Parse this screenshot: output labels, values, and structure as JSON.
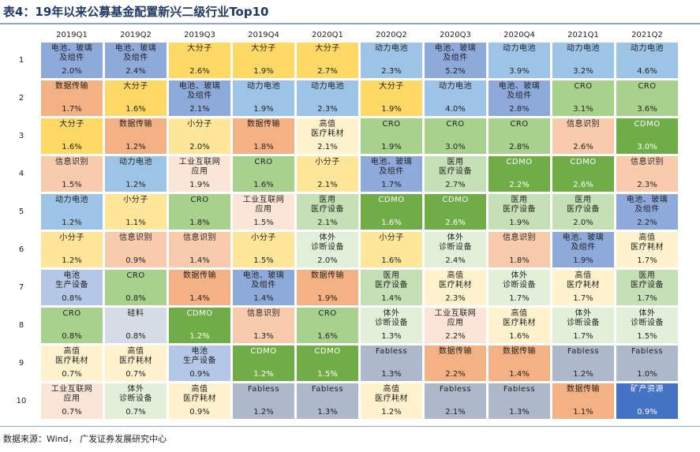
{
  "title": "表4：19年以来公募基金配置新兴二级行业Top10",
  "source": "数据来源：Wind，  广发证券发展研究中心",
  "quarters": [
    "2019Q1",
    "2019Q2",
    "2019Q3",
    "2019Q4",
    "2020Q1",
    "2020Q2",
    "2020Q3",
    "2020Q4",
    "2021Q1",
    "2021Q2"
  ],
  "palette": {
    "电池、玻璃及组件": "#8eaadb",
    "大分子": "#ffd966",
    "小分子": "#ffe699",
    "数据传输": "#f4b183",
    "信息识别": "#f8cbad",
    "动力电池": "#9dc3e6",
    "工业互联网应用": "#fbe5d6",
    "CRO": "#a9d18e",
    "CDMO": "#70ad47",
    "高值医疗耗材": "#fff2cc",
    "医用医疗设备": "#c5e0b4",
    "体外诊断设备": "#e2f0d9",
    "电池生产设备": "#b4c7e7",
    "硅料": "#d6dce5",
    "Fabless": "#adb9ca",
    "矿产资源": "#4472c4"
  },
  "rows": [
    {
      "rank": "1",
      "cells": [
        {
          "name": "电池、玻璃\n及组件",
          "pct": "2.0%"
        },
        {
          "name": "电池、玻璃\n及组件",
          "pct": "2.4%"
        },
        {
          "name": "大分子",
          "pct": "2.6%"
        },
        {
          "name": "大分子",
          "pct": "1.9%"
        },
        {
          "name": "大分子",
          "pct": "2.7%"
        },
        {
          "name": "动力电池",
          "pct": "2.3%"
        },
        {
          "name": "电池、玻璃\n及组件",
          "pct": "5.2%"
        },
        {
          "name": "动力电池",
          "pct": "3.9%"
        },
        {
          "name": "动力电池",
          "pct": "3.2%"
        },
        {
          "name": "动力电池",
          "pct": "4.6%"
        }
      ]
    },
    {
      "rank": "2",
      "cells": [
        {
          "name": "数据传输",
          "pct": "1.7%"
        },
        {
          "name": "大分子",
          "pct": "1.6%"
        },
        {
          "name": "电池、玻璃\n及组件",
          "pct": "2.1%"
        },
        {
          "name": "动力电池",
          "pct": "1.9%"
        },
        {
          "name": "动力电池",
          "pct": "2.3%"
        },
        {
          "name": "大分子",
          "pct": "1.9%"
        },
        {
          "name": "动力电池",
          "pct": "4.0%"
        },
        {
          "name": "电池、玻璃\n及组件",
          "pct": "2.8%"
        },
        {
          "name": "CRO",
          "pct": "3.1%"
        },
        {
          "name": "CRO",
          "pct": "3.6%"
        }
      ]
    },
    {
      "rank": "3",
      "cells": [
        {
          "name": "大分子",
          "pct": "1.6%"
        },
        {
          "name": "数据传输",
          "pct": "1.2%"
        },
        {
          "name": "小分子",
          "pct": "2.0%"
        },
        {
          "name": "数据传输",
          "pct": "1.8%"
        },
        {
          "name": "高值\n医疗耗材",
          "pct": "2.1%"
        },
        {
          "name": "CRO",
          "pct": "1.9%"
        },
        {
          "name": "CRO",
          "pct": "3.0%"
        },
        {
          "name": "CRO",
          "pct": "2.8%"
        },
        {
          "name": "信息识别",
          "pct": "2.6%"
        },
        {
          "name": "CDMO",
          "pct": "3.0%"
        }
      ]
    },
    {
      "rank": "4",
      "cells": [
        {
          "name": "信息识别",
          "pct": "1.5%"
        },
        {
          "name": "动力电池",
          "pct": "1.2%"
        },
        {
          "name": "工业互联网\n应用",
          "pct": "1.9%"
        },
        {
          "name": "CRO",
          "pct": "1.6%"
        },
        {
          "name": "小分子",
          "pct": "2.1%"
        },
        {
          "name": "电池、玻璃\n及组件",
          "pct": "1.7%"
        },
        {
          "name": "医用\n医疗设备",
          "pct": "2.7%"
        },
        {
          "name": "CDMO",
          "pct": "2.2%"
        },
        {
          "name": "CDMO",
          "pct": "2.6%"
        },
        {
          "name": "信息识别",
          "pct": "2.3%"
        }
      ]
    },
    {
      "rank": "5",
      "cells": [
        {
          "name": "动力电池",
          "pct": "1.2%"
        },
        {
          "name": "小分子",
          "pct": "1.1%"
        },
        {
          "name": "CRO",
          "pct": "1.8%"
        },
        {
          "name": "工业互联网\n应用",
          "pct": "1.5%"
        },
        {
          "name": "医用\n医疗设备",
          "pct": "2.1%"
        },
        {
          "name": "CDMO",
          "pct": "1.6%"
        },
        {
          "name": "CDMO",
          "pct": "2.6%"
        },
        {
          "name": "医用\n医疗设备",
          "pct": "1.9%"
        },
        {
          "name": "医用\n医疗设备",
          "pct": "2.0%"
        },
        {
          "name": "电池、玻璃\n及组件",
          "pct": "2.2%"
        }
      ]
    },
    {
      "rank": "6",
      "cells": [
        {
          "name": "小分子",
          "pct": "1.2%"
        },
        {
          "name": "信息识别",
          "pct": "0.9%"
        },
        {
          "name": "信息识别",
          "pct": "1.4%"
        },
        {
          "name": "小分子",
          "pct": "1.5%"
        },
        {
          "name": "体外\n诊断设备",
          "pct": "2.0%"
        },
        {
          "name": "小分子",
          "pct": "1.6%"
        },
        {
          "name": "体外\n诊断设备",
          "pct": "2.4%"
        },
        {
          "name": "信息识别",
          "pct": "1.8%"
        },
        {
          "name": "电池、玻璃\n及组件",
          "pct": "1.9%"
        },
        {
          "name": "高值\n医疗耗材",
          "pct": "1.7%"
        }
      ]
    },
    {
      "rank": "7",
      "cells": [
        {
          "name": "电池\n生产设备",
          "pct": "0.8%"
        },
        {
          "name": "CRO",
          "pct": "0.8%"
        },
        {
          "name": "数据传输",
          "pct": "1.4%"
        },
        {
          "name": "电池、玻璃\n及组件",
          "pct": "1.4%"
        },
        {
          "name": "数据传输",
          "pct": "1.9%"
        },
        {
          "name": "医用\n医疗设备",
          "pct": "1.4%"
        },
        {
          "name": "高值\n医疗耗材",
          "pct": "2.3%"
        },
        {
          "name": "体外\n诊断设备",
          "pct": "1.7%"
        },
        {
          "name": "高值\n医疗耗材",
          "pct": "1.7%"
        },
        {
          "name": "医用\n医疗设备",
          "pct": "1.7%"
        }
      ]
    },
    {
      "rank": "8",
      "cells": [
        {
          "name": "CRO",
          "pct": "0.8%"
        },
        {
          "name": "硅料",
          "pct": "0.8%"
        },
        {
          "name": "CDMO",
          "pct": "1.2%"
        },
        {
          "name": "信息识别",
          "pct": "1.3%"
        },
        {
          "name": "CRO",
          "pct": "1.6%"
        },
        {
          "name": "体外\n诊断设备",
          "pct": "1.3%"
        },
        {
          "name": "工业互联网\n应用",
          "pct": "2.2%"
        },
        {
          "name": "高值\n医疗耗材",
          "pct": "1.6%"
        },
        {
          "name": "体外\n诊断设备",
          "pct": "1.7%"
        },
        {
          "name": "体外\n诊断设备",
          "pct": "1.5%"
        }
      ]
    },
    {
      "rank": "9",
      "cells": [
        {
          "name": "高值\n医疗耗材",
          "pct": "0.7%"
        },
        {
          "name": "高值\n医疗耗材",
          "pct": "0.7%"
        },
        {
          "name": "电池\n生产设备",
          "pct": "0.9%"
        },
        {
          "name": "CDMO",
          "pct": "1.2%"
        },
        {
          "name": "CDMO",
          "pct": "1.5%"
        },
        {
          "name": "Fabless",
          "pct": "1.3%"
        },
        {
          "name": "数据传输",
          "pct": "2.2%"
        },
        {
          "name": "数据传输",
          "pct": "1.4%"
        },
        {
          "name": "Fabless",
          "pct": "1.2%"
        },
        {
          "name": "Fabless",
          "pct": "1.0%"
        }
      ]
    },
    {
      "rank": "10",
      "cells": [
        {
          "name": "工业互联网\n应用",
          "pct": "0.7%"
        },
        {
          "name": "体外\n诊断设备",
          "pct": "0.7%"
        },
        {
          "name": "高值\n医疗耗材",
          "pct": "0.9%"
        },
        {
          "name": "Fabless",
          "pct": "1.2%"
        },
        {
          "name": "Fabless",
          "pct": "1.3%"
        },
        {
          "name": "高值\n医疗耗材",
          "pct": "1.2%"
        },
        {
          "name": "Fabless",
          "pct": "2.1%"
        },
        {
          "name": "Fabless",
          "pct": "1.3%"
        },
        {
          "name": "数据传输",
          "pct": "1.1%"
        },
        {
          "name": "矿产资源",
          "pct": "0.9%"
        }
      ]
    }
  ]
}
